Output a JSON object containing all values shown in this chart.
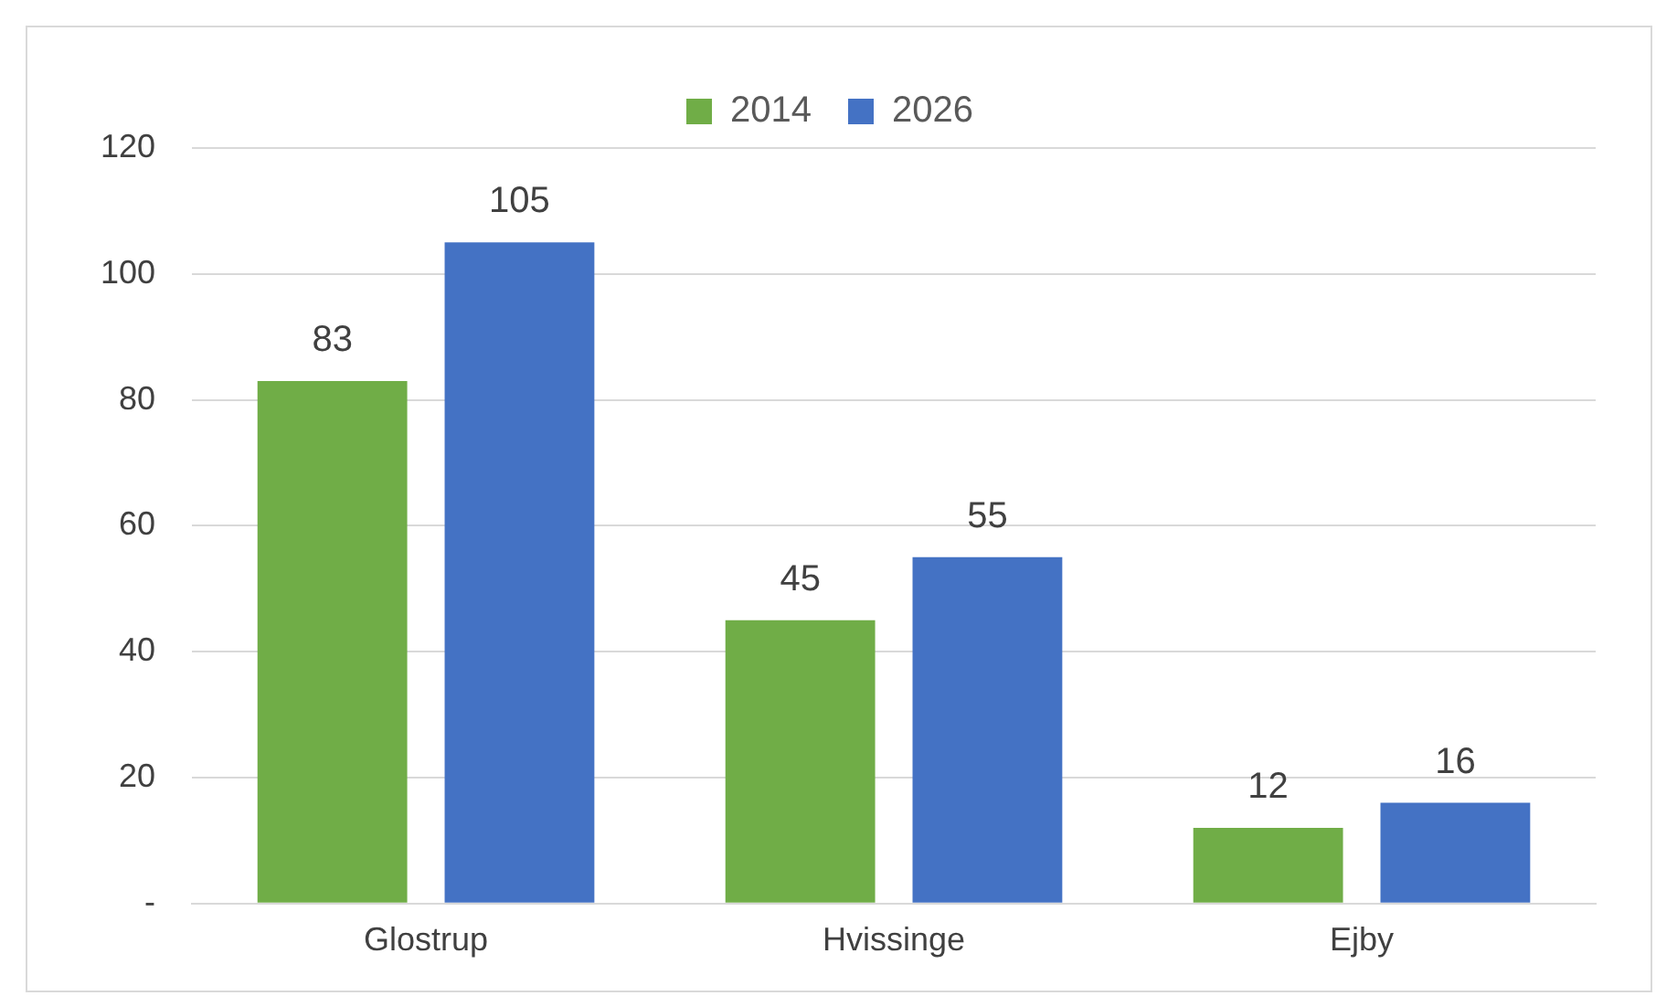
{
  "chart_data": {
    "type": "bar",
    "categories": [
      "Glostrup",
      "Hvissinge",
      "Ejby"
    ],
    "series": [
      {
        "name": "2014",
        "color": "#70ad47",
        "values": [
          83,
          45,
          12
        ]
      },
      {
        "name": "2026",
        "color": "#4472c4",
        "values": [
          105,
          55,
          16
        ]
      }
    ],
    "ylim": [
      0,
      120
    ],
    "yticks": [
      {
        "value": 0,
        "label": "-"
      },
      20,
      40,
      60,
      80,
      100,
      120
    ],
    "grid": "y",
    "legend": "top",
    "data_labels": true
  }
}
